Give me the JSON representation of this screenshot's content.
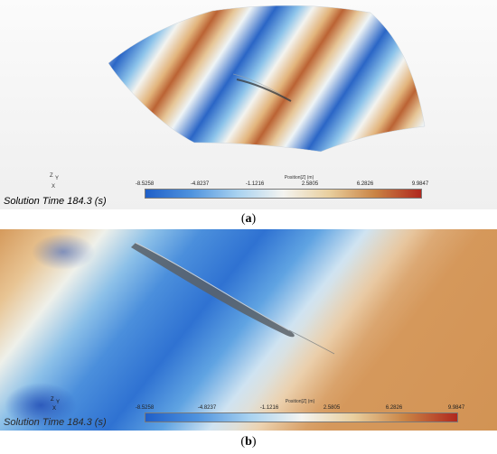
{
  "panel_a": {
    "legend": {
      "title": "Position[Z] (m)",
      "ticks": [
        "-8.5258",
        "-4.8237",
        "-1.1216",
        "2.5805",
        "6.2826",
        "9.9847"
      ]
    },
    "solution_time": "Solution Time 184.3 (s)",
    "axes": {
      "z": "Z",
      "y": "Y",
      "x": "X"
    },
    "caption_open": "(",
    "caption_letter": "a",
    "caption_close": ")"
  },
  "panel_b": {
    "legend": {
      "title": "Position[Z] (m)",
      "ticks": [
        "-8.5258",
        "-4.8237",
        "-1.1216",
        "2.5805",
        "6.2826",
        "9.9847"
      ]
    },
    "solution_time": "Solution Time 184.3 (s)",
    "axes": {
      "z": "Z",
      "y": "Y",
      "x": "X"
    },
    "caption_open": "(",
    "caption_letter": "b",
    "caption_close": ")"
  },
  "colormap": {
    "low": "#1f5fc8",
    "mid": "#f4f4f0",
    "high": "#b0281e"
  }
}
